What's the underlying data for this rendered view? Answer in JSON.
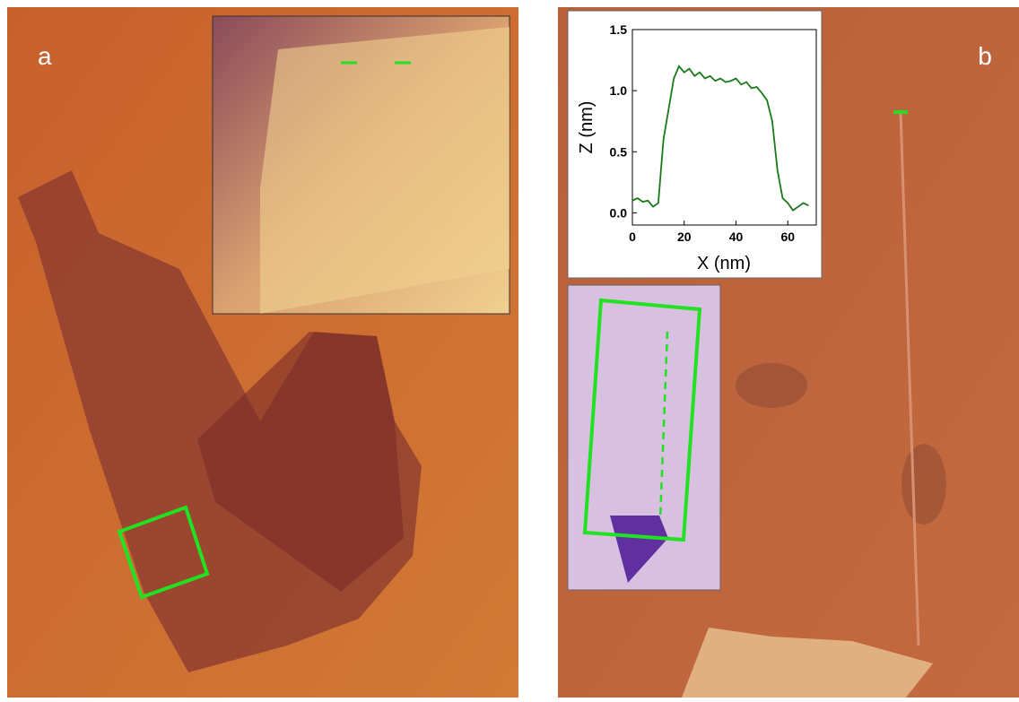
{
  "panels": {
    "a": "a",
    "b": "b"
  },
  "chart_data": {
    "type": "line",
    "xlabel": "X (nm)",
    "ylabel": "Z (nm)",
    "x": [
      0,
      2,
      4,
      6,
      8,
      10,
      12,
      14,
      16,
      18,
      20,
      22,
      24,
      26,
      28,
      30,
      32,
      34,
      36,
      38,
      40,
      42,
      44,
      46,
      48,
      50,
      52,
      54,
      56,
      58,
      60,
      62,
      64,
      66,
      68
    ],
    "series": [
      {
        "color": "#1a7a1a",
        "values": [
          0.1,
          0.12,
          0.09,
          0.1,
          0.05,
          0.08,
          0.6,
          0.85,
          1.1,
          1.2,
          1.15,
          1.18,
          1.12,
          1.15,
          1.1,
          1.12,
          1.08,
          1.1,
          1.07,
          1.08,
          1.1,
          1.05,
          1.07,
          1.02,
          1.03,
          0.98,
          0.92,
          0.75,
          0.35,
          0.12,
          0.08,
          0.02,
          0.05,
          0.08,
          0.06
        ]
      }
    ],
    "xlim": [
      0,
      71
    ],
    "ylim": [
      -0.1,
      1.5
    ],
    "xticks": [
      0,
      20,
      40,
      60
    ],
    "yticks": [
      {
        "value": 0,
        "label": "0.0"
      },
      0.5,
      {
        "value": 1,
        "label": "1.0"
      },
      1.5
    ]
  }
}
